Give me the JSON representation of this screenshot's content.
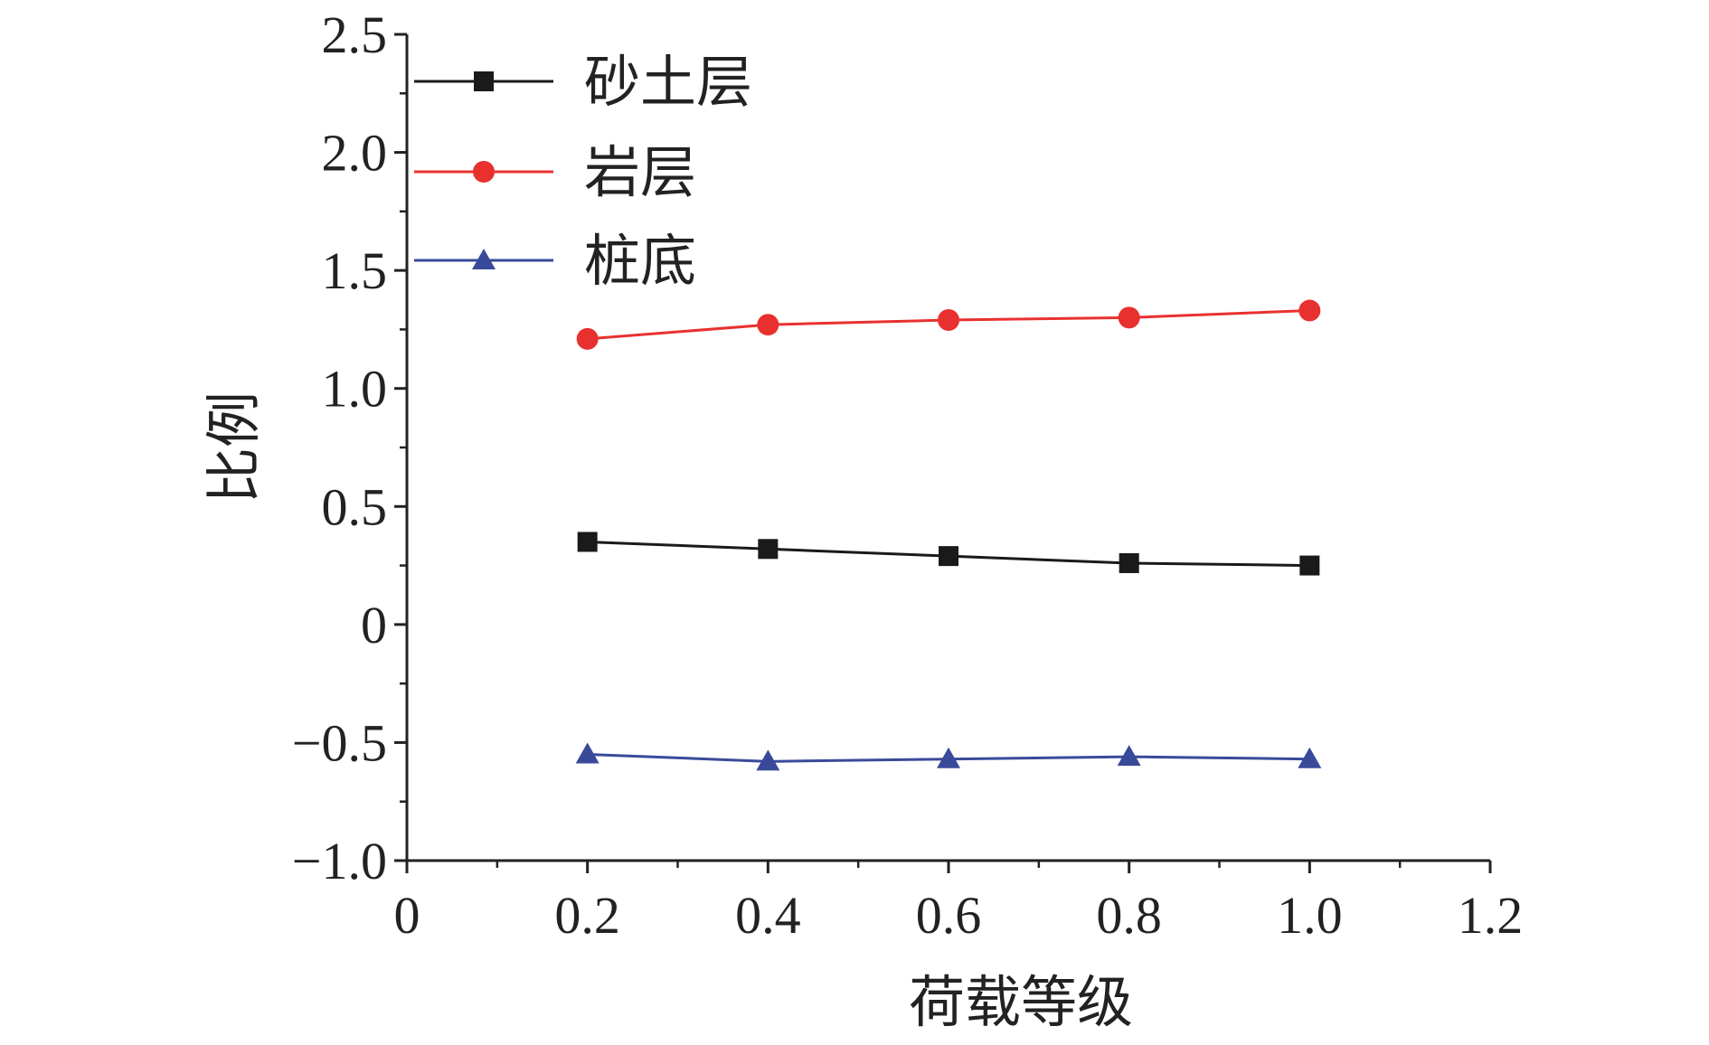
{
  "chart_data": {
    "type": "line",
    "title": "",
    "xlabel": "荷载等级",
    "ylabel": "比例",
    "xlim": [
      0,
      1.2
    ],
    "ylim": [
      -1.0,
      2.5
    ],
    "xticks": [
      0,
      0.2,
      0.4,
      0.6,
      0.8,
      1.0,
      1.2
    ],
    "xtick_labels": [
      "0",
      "0.2",
      "0.4",
      "0.6",
      "0.8",
      "1.0",
      "1.2"
    ],
    "yticks": [
      -1.0,
      -0.5,
      0,
      0.5,
      1.0,
      1.5,
      2.0,
      2.5
    ],
    "ytick_labels": [
      "−1.0",
      "−0.5",
      "0",
      "0.5",
      "1.0",
      "1.5",
      "2.0",
      "2.5"
    ],
    "grid": false,
    "legend_position": "top-left",
    "x": [
      0.2,
      0.4,
      0.6,
      0.8,
      1.0
    ],
    "series": [
      {
        "name": "砂土层",
        "color": "#1a1a1a",
        "marker": "square",
        "values": [
          0.35,
          0.32,
          0.29,
          0.26,
          0.25
        ]
      },
      {
        "name": "岩层",
        "color": "#e8312f",
        "marker": "circle",
        "values": [
          1.21,
          1.27,
          1.29,
          1.3,
          1.33
        ]
      },
      {
        "name": "桩底",
        "color": "#3a4a9a",
        "marker": "triangle",
        "values": [
          -0.55,
          -0.58,
          -0.57,
          -0.56,
          -0.57
        ]
      }
    ]
  }
}
